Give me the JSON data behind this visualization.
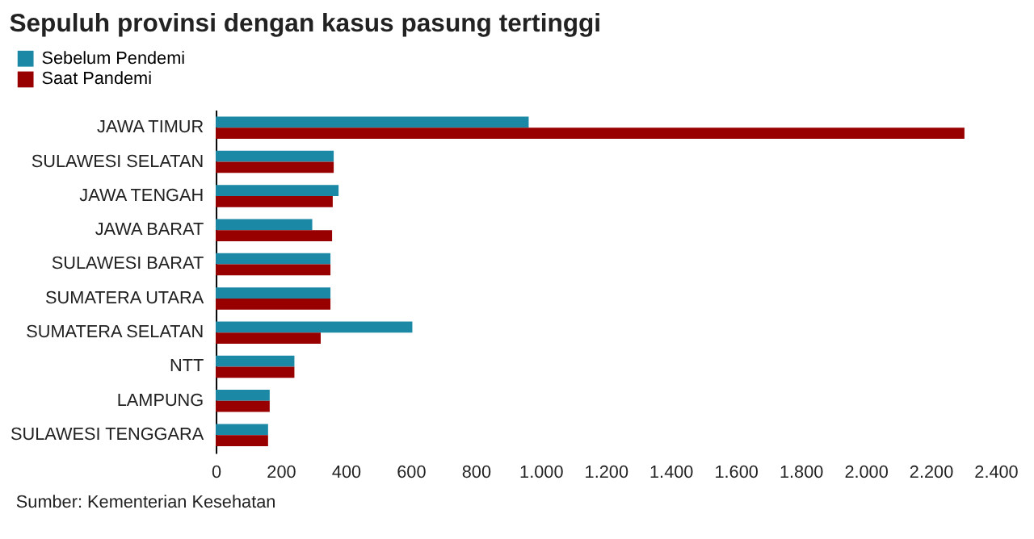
{
  "chart_data": {
    "type": "bar",
    "orientation": "horizontal",
    "title": "Sepuluh provinsi dengan kasus pasung tertinggi",
    "categories": [
      "JAWA TIMUR",
      "SULAWESI SELATAN",
      "JAWA TENGAH",
      "JAWA BARAT",
      "SULAWESI BARAT",
      "SUMATERA UTARA",
      "SUMATERA SELATAN",
      "NTT",
      "LAMPUNG",
      "SULAWESI TENGGARA"
    ],
    "series": [
      {
        "name": "Sebelum Pendemi",
        "color": "#1b89a6",
        "values": [
          963,
          363,
          378,
          297,
          353,
          353,
          605,
          242,
          166,
          161
        ]
      },
      {
        "name": "Saat Pandemi",
        "color": "#980000",
        "values": [
          2304,
          363,
          360,
          358,
          353,
          353,
          323,
          242,
          166,
          161
        ]
      }
    ],
    "xlim": [
      0,
      2400
    ],
    "xticks": [
      0,
      {
        "value": 200,
        "label": "200"
      },
      {
        "value": 400,
        "label": "400"
      },
      {
        "value": 600,
        "label": "600"
      },
      {
        "value": 800,
        "label": "800"
      },
      {
        "value": 1000,
        "label": "1.000"
      },
      {
        "value": 1200,
        "label": "1.200"
      },
      {
        "value": 1400,
        "label": "1.400"
      },
      {
        "value": 1600,
        "label": "1.600"
      },
      {
        "value": 1800,
        "label": "1.800"
      },
      {
        "value": 2000,
        "label": "2.000"
      },
      {
        "value": 2200,
        "label": "2.200"
      },
      {
        "value": 2400,
        "label": "2.400"
      }
    ],
    "annotations": [
      "Sumber: Kementerian Kesehatan"
    ],
    "legend": "top left",
    "grid": false
  }
}
